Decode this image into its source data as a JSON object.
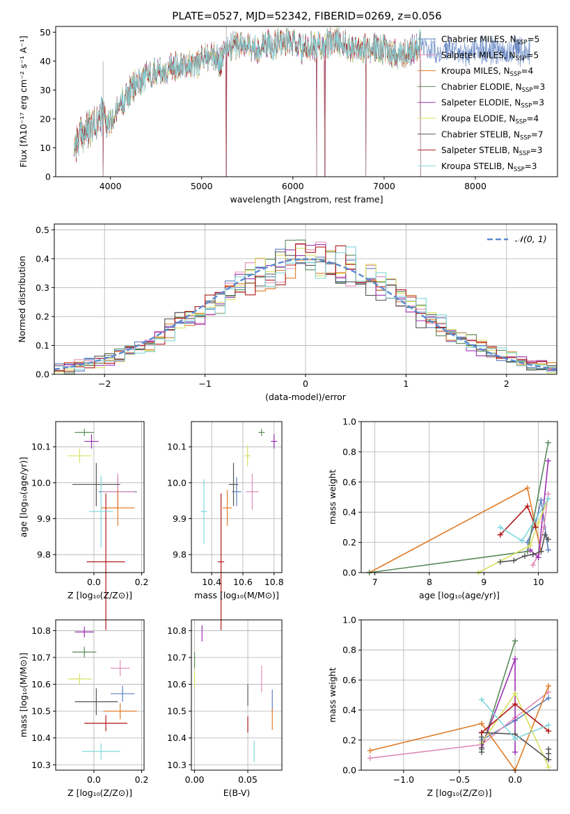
{
  "figure": {
    "title": "PLATE=0527, MJD=52342, FIBERID=0269, z=0.056"
  },
  "series": [
    {
      "name": "Chabrier MILES, N",
      "sub": "SSP",
      "tail": "=5",
      "color": "#5b7fbf"
    },
    {
      "name": "Salpeter MILES, N",
      "sub": "SSP",
      "tail": "=5",
      "color": "#e08cb8"
    },
    {
      "name": "Kroupa MILES, N",
      "sub": "SSP",
      "tail": "=4",
      "color": "#e07b27"
    },
    {
      "name": "Chabrier ELODIE, N",
      "sub": "SSP",
      "tail": "=3",
      "color": "#5a8a5a"
    },
    {
      "name": "Salpeter ELODIE, N",
      "sub": "SSP",
      "tail": "=3",
      "color": "#9a2fb0"
    },
    {
      "name": "Kroupa ELODIE, N",
      "sub": "SSP",
      "tail": "=4",
      "color": "#d8e060"
    },
    {
      "name": "Chabrier STELIB, N",
      "sub": "SSP",
      "tail": "=7",
      "color": "#555555"
    },
    {
      "name": "Salpeter STELIB, N",
      "sub": "SSP",
      "tail": "=3",
      "color": "#b01818"
    },
    {
      "name": "Kroupa STELIB, N",
      "sub": "SSP",
      "tail": "=3",
      "color": "#7fd6dc"
    }
  ],
  "chart_data": [
    {
      "id": "spectrum",
      "type": "line",
      "xlabel": "wavelength [Angstrom, rest frame]",
      "ylabel": "Flux [fλ10⁻¹⁷ erg cm⁻² s⁻¹ A⁻¹]",
      "xlim": [
        3400,
        8900
      ],
      "ylim": [
        0,
        52
      ],
      "xticks": [
        "4000",
        "5000",
        "6000",
        "7000",
        "8000"
      ],
      "xtick_values": [
        4000,
        5000,
        6000,
        7000,
        8000
      ],
      "yticks": [
        "0",
        "10",
        "20",
        "30",
        "40",
        "50"
      ],
      "ytick_values": [
        0,
        10,
        20,
        30,
        40,
        50
      ],
      "grid": false,
      "legend": "right",
      "profile": {
        "x": [
          3600,
          3700,
          3800,
          3900,
          4000,
          4100,
          4200,
          4300,
          4400,
          4500,
          4600,
          4700,
          4800,
          4900,
          5000,
          5100,
          5200,
          5300,
          5400,
          5500,
          5600,
          5700,
          5800,
          5900,
          6000,
          6100,
          6200,
          6300,
          6400,
          6500,
          6600,
          6700,
          6800,
          6900,
          7000,
          7100,
          7200,
          7300,
          7400
        ],
        "y": [
          11,
          15,
          17,
          21,
          18,
          25,
          29,
          33,
          35,
          37,
          36,
          38,
          40,
          38,
          41,
          42,
          40,
          45,
          46,
          45,
          44,
          46,
          46,
          47,
          46,
          44,
          45,
          45,
          46,
          47,
          45,
          45,
          44,
          45,
          44,
          43,
          42,
          44,
          46
        ]
      },
      "dips_x": [
        3920,
        5270,
        6260,
        6350,
        6800,
        7400
      ]
    },
    {
      "id": "residuals",
      "type": "line",
      "xlabel": "(data-model)/error",
      "ylabel": "Normed distribution",
      "xlim": [
        -2.5,
        2.5
      ],
      "ylim": [
        0,
        0.52
      ],
      "xticks": [
        "−2",
        "−1",
        "0",
        "1",
        "2"
      ],
      "xtick_values": [
        -2,
        -1,
        0,
        1,
        2
      ],
      "yticks": [
        "0.0",
        "0.1",
        "0.2",
        "0.3",
        "0.4",
        "0.5"
      ],
      "ytick_values": [
        0,
        0.1,
        0.2,
        0.3,
        0.4,
        0.5
      ],
      "grid": true,
      "legend": "top-right",
      "reference_label": "𝒩(0, 1)",
      "reference_color": "#5b8ad0"
    },
    {
      "id": "age-vs-Z",
      "type": "scatter",
      "xlabel": "Z [log₁₀(Z/Z⊙)]",
      "ylabel": "age  [log₁₀(age/yr)]",
      "xlim": [
        -0.16,
        0.21
      ],
      "ylim": [
        9.75,
        10.17
      ],
      "xticks": [
        "0.0",
        "0.2"
      ],
      "xtick_values": [
        0,
        0.2
      ],
      "yticks": [
        "9.8",
        "9.9",
        "10.0",
        "10.1"
      ],
      "ytick_values": [
        9.8,
        9.9,
        10.0,
        10.1
      ],
      "grid": true,
      "points": [
        {
          "x": 0.1,
          "y": 9.975,
          "xerr": 0.08,
          "yerr": 0.04
        },
        {
          "x": 0.1,
          "y": 9.975,
          "xerr": 0.07,
          "yerr": 0.05
        },
        {
          "x": 0.1,
          "y": 9.93,
          "xerr": 0.07,
          "yerr": 0.05
        },
        {
          "x": -0.04,
          "y": 10.14,
          "xerr": 0.04,
          "yerr": 0.01
        },
        {
          "x": -0.01,
          "y": 10.115,
          "xerr": 0.03,
          "yerr": 0.02
        },
        {
          "x": -0.06,
          "y": 10.075,
          "xerr": 0.05,
          "yerr": 0.02
        },
        {
          "x": 0.01,
          "y": 9.995,
          "xerr": 0.1,
          "yerr": 0.06
        },
        {
          "x": 0.05,
          "y": 9.78,
          "xerr": 0.08,
          "yerr": 0.19
        },
        {
          "x": 0.03,
          "y": 9.92,
          "xerr": 0.05,
          "yerr": 0.1
        }
      ]
    },
    {
      "id": "age-vs-mass",
      "type": "scatter",
      "xlabel": "mass [log₁₀(M/M⊙)]",
      "ylabel": "",
      "xlim": [
        10.27,
        10.85
      ],
      "ylim": [
        9.75,
        10.17
      ],
      "xticks": [
        "10.4",
        "10.6",
        "10.8"
      ],
      "xtick_values": [
        10.4,
        10.6,
        10.8
      ],
      "yticks": [
        "9.8",
        "9.9",
        "10.0",
        "10.1"
      ],
      "ytick_values": [
        9.8,
        9.9,
        10.0,
        10.1
      ],
      "grid": true,
      "points": [
        {
          "x": 10.56,
          "y": 9.975,
          "xerr": 0.03,
          "yerr": 0.04
        },
        {
          "x": 10.66,
          "y": 9.975,
          "xerr": 0.04,
          "yerr": 0.05
        },
        {
          "x": 10.5,
          "y": 9.93,
          "xerr": 0.03,
          "yerr": 0.05
        },
        {
          "x": 10.72,
          "y": 10.14,
          "xerr": 0.02,
          "yerr": 0.01
        },
        {
          "x": 10.8,
          "y": 10.115,
          "xerr": 0.02,
          "yerr": 0.02
        },
        {
          "x": 10.63,
          "y": 10.075,
          "xerr": 0.02,
          "yerr": 0.03
        },
        {
          "x": 10.54,
          "y": 9.995,
          "xerr": 0.03,
          "yerr": 0.06
        },
        {
          "x": 10.46,
          "y": 9.78,
          "xerr": 0.02,
          "yerr": 0.19
        },
        {
          "x": 10.35,
          "y": 9.92,
          "xerr": 0.02,
          "yerr": 0.09
        }
      ]
    },
    {
      "id": "weight-vs-age",
      "type": "line",
      "xlabel": "age  [log₁₀(age/yr)]",
      "ylabel": "mass weight",
      "xlim": [
        6.75,
        10.35
      ],
      "ylim": [
        0,
        1.0
      ],
      "xticks": [
        "7",
        "8",
        "9",
        "10"
      ],
      "xtick_values": [
        7,
        8,
        9,
        10
      ],
      "yticks": [
        "0.0",
        "0.2",
        "0.4",
        "0.6",
        "0.8",
        "1.0"
      ],
      "ytick_values": [
        0,
        0.2,
        0.4,
        0.6,
        0.8,
        1.0
      ],
      "grid": true,
      "lines": [
        {
          "x": [
            9.8,
            9.95,
            10.05,
            10.18
          ],
          "y": [
            0.2,
            0.33,
            0.48,
            0.15
          ]
        },
        {
          "x": [
            9.9,
            10.0,
            10.1,
            10.18
          ],
          "y": [
            0.05,
            0.12,
            0.3,
            0.52
          ]
        },
        {
          "x": [
            6.9,
            9.8,
            9.95,
            10.05
          ],
          "y": [
            0.0,
            0.56,
            0.3,
            0.14
          ]
        },
        {
          "x": [
            6.9,
            9.8,
            10.18
          ],
          "y": [
            0.0,
            0.14,
            0.86
          ]
        },
        {
          "x": [
            9.85,
            10.0,
            10.18
          ],
          "y": [
            0.15,
            0.1,
            0.74
          ]
        },
        {
          "x": [
            8.9,
            9.85,
            10.0,
            10.18
          ],
          "y": [
            0.0,
            0.18,
            0.33,
            0.49
          ]
        },
        {
          "x": [
            9.3,
            9.55,
            9.75,
            9.9,
            10.05,
            10.12,
            10.18
          ],
          "y": [
            0.07,
            0.08,
            0.11,
            0.12,
            0.14,
            0.25,
            0.22
          ]
        },
        {
          "x": [
            9.3,
            9.8,
            9.95
          ],
          "y": [
            0.25,
            0.44,
            0.3
          ]
        },
        {
          "x": [
            9.3,
            9.7,
            10.18
          ],
          "y": [
            0.3,
            0.21,
            0.49
          ]
        }
      ]
    },
    {
      "id": "mass-vs-Z",
      "type": "scatter",
      "xlabel": "Z [log₁₀(Z/Z⊙)]",
      "ylabel": "mass [log₁₀(M/M⊙)]",
      "xlim": [
        -0.16,
        0.21
      ],
      "ylim": [
        10.28,
        10.84
      ],
      "xticks": [
        "0.0",
        "0.2"
      ],
      "xtick_values": [
        0,
        0.2
      ],
      "yticks": [
        "10.3",
        "10.4",
        "10.5",
        "10.6",
        "10.7",
        "10.8"
      ],
      "ytick_values": [
        10.3,
        10.4,
        10.5,
        10.6,
        10.7,
        10.8
      ],
      "grid": true,
      "points": [
        {
          "x": 0.12,
          "y": 10.565,
          "xerr": 0.05,
          "yerr": 0.03
        },
        {
          "x": 0.11,
          "y": 10.66,
          "xerr": 0.04,
          "yerr": 0.03
        },
        {
          "x": 0.11,
          "y": 10.5,
          "xerr": 0.07,
          "yerr": 0.03
        },
        {
          "x": -0.04,
          "y": 10.72,
          "xerr": 0.05,
          "yerr": 0.02
        },
        {
          "x": -0.04,
          "y": 10.795,
          "xerr": 0.04,
          "yerr": 0.02
        },
        {
          "x": -0.06,
          "y": 10.62,
          "xerr": 0.05,
          "yerr": 0.02
        },
        {
          "x": 0.01,
          "y": 10.535,
          "xerr": 0.09,
          "yerr": 0.05
        },
        {
          "x": 0.05,
          "y": 10.455,
          "xerr": 0.09,
          "yerr": 0.03
        },
        {
          "x": 0.03,
          "y": 10.35,
          "xerr": 0.08,
          "yerr": 0.03
        }
      ]
    },
    {
      "id": "mass-vs-ebv",
      "type": "scatter",
      "xlabel": "E(B-V)",
      "ylabel": "",
      "xlim": [
        -0.003,
        0.082
      ],
      "ylim": [
        10.28,
        10.84
      ],
      "xticks": [
        "0.00",
        "0.05"
      ],
      "xtick_values": [
        0,
        0.05
      ],
      "yticks": [
        "10.3",
        "10.4",
        "10.5",
        "10.6",
        "10.7",
        "10.8"
      ],
      "ytick_values": [
        10.3,
        10.4,
        10.5,
        10.6,
        10.7,
        10.8
      ],
      "grid": true,
      "points": [
        {
          "x": 0.073,
          "y": 10.54,
          "xerr": 0.0,
          "yerr": 0.04
        },
        {
          "x": 0.063,
          "y": 10.62,
          "xerr": 0.0,
          "yerr": 0.05
        },
        {
          "x": 0.073,
          "y": 10.47,
          "xerr": 0.0,
          "yerr": 0.04
        },
        {
          "x": 0.0,
          "y": 10.69,
          "xerr": 0.0,
          "yerr": 0.03
        },
        {
          "x": 0.007,
          "y": 10.79,
          "xerr": 0.0,
          "yerr": 0.03
        },
        {
          "x": 0.0,
          "y": 10.62,
          "xerr": 0.0,
          "yerr": 0.03
        },
        {
          "x": 0.05,
          "y": 10.56,
          "xerr": 0.0,
          "yerr": 0.04
        },
        {
          "x": 0.05,
          "y": 10.45,
          "xerr": 0.0,
          "yerr": 0.03
        },
        {
          "x": 0.056,
          "y": 10.35,
          "xerr": 0.0,
          "yerr": 0.04
        }
      ]
    },
    {
      "id": "weight-vs-Z",
      "type": "line",
      "xlabel": "Z [log₁₀(Z/Z⊙)]",
      "ylabel": "mass weight",
      "xlim": [
        -1.38,
        0.38
      ],
      "ylim": [
        0,
        1.0
      ],
      "xticks": [
        "−1.0",
        "−0.5",
        "0.0"
      ],
      "xtick_values": [
        -1.0,
        -0.5,
        0.0
      ],
      "yticks": [
        "0.0",
        "0.2",
        "0.4",
        "0.6",
        "0.8",
        "1.0"
      ],
      "ytick_values": [
        0,
        0.2,
        0.4,
        0.6,
        0.8,
        1.0
      ],
      "grid": true,
      "lines": [
        {
          "x": [
            -0.3,
            0.0,
            0.3
          ],
          "y": [
            0.2,
            0.33,
            0.48
          ]
        },
        {
          "x": [
            -1.3,
            -0.3,
            0.0,
            0.3
          ],
          "y": [
            0.08,
            0.17,
            0.35,
            0.52
          ]
        },
        {
          "x": [
            -1.3,
            -0.3,
            0.0,
            0.3
          ],
          "y": [
            0.13,
            0.31,
            0.0,
            0.56
          ]
        },
        {
          "x": [
            -0.3,
            0.0
          ],
          "y": [
            0.14,
            0.86
          ]
        },
        {
          "x": [
            -0.3,
            0.0,
            0.0
          ],
          "y": [
            0.15,
            0.74,
            0.12
          ]
        },
        {
          "x": [
            -0.3,
            0.0,
            0.3
          ],
          "y": [
            0.18,
            0.51,
            0.02
          ]
        },
        {
          "x": [
            -0.3,
            -0.3,
            -0.3,
            0.0,
            0.3,
            0.3,
            0.3
          ],
          "y": [
            0.12,
            0.22,
            0.25,
            0.24,
            0.07,
            0.14,
            0.11
          ]
        },
        {
          "x": [
            -0.3,
            0.0,
            0.3
          ],
          "y": [
            0.25,
            0.44,
            0.26
          ]
        },
        {
          "x": [
            -0.3,
            0.0,
            0.3
          ],
          "y": [
            0.47,
            0.21,
            0.3
          ]
        }
      ]
    }
  ]
}
